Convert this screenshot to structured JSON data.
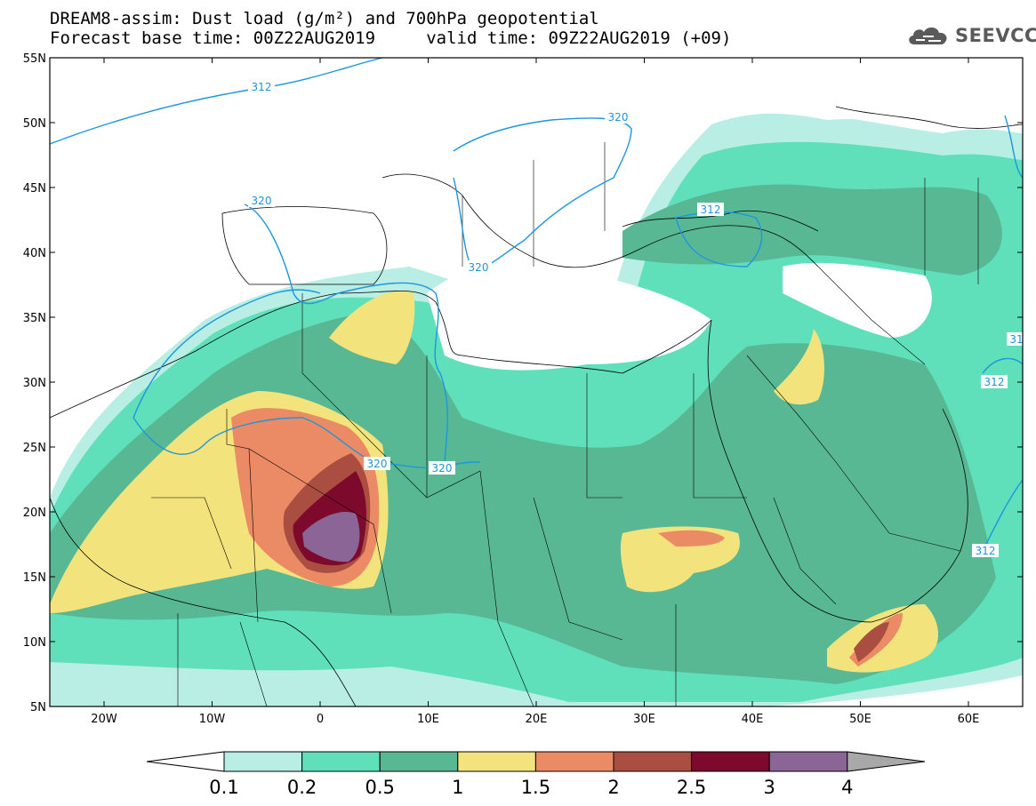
{
  "header": {
    "line1": "DREAM8-assim: Dust load (g/m²) and 700hPa geopotential",
    "line2": "Forecast base time: 00Z22AUG2019     valid time: 09Z22AUG2019 (+09)"
  },
  "logo": {
    "text": "SEEVCCC",
    "icon": "cloud-icon"
  },
  "map": {
    "lat_labels": [
      "55N",
      "50N",
      "45N",
      "40N",
      "35N",
      "30N",
      "25N",
      "20N",
      "15N",
      "10N",
      "5N"
    ],
    "lon_labels": [
      "20W",
      "10W",
      "0",
      "10E",
      "20E",
      "30E",
      "40E",
      "50E",
      "60E"
    ],
    "contour_labels": [
      "312",
      "320",
      "320",
      "312",
      "320",
      "320",
      "320",
      "31",
      "312",
      "312"
    ]
  },
  "colorbar": {
    "labels": [
      "0.1",
      "0.2",
      "0.5",
      "1",
      "1.5",
      "2",
      "2.5",
      "3",
      "4"
    ],
    "colors": [
      "#b8eee3",
      "#5fe0bb",
      "#58b894",
      "#f3e37c",
      "#ea8b65",
      "#ab4e42",
      "#7d0a2d",
      "#8b6596"
    ],
    "under_color": "#ffffff",
    "over_color": "#a8a8a8"
  }
}
